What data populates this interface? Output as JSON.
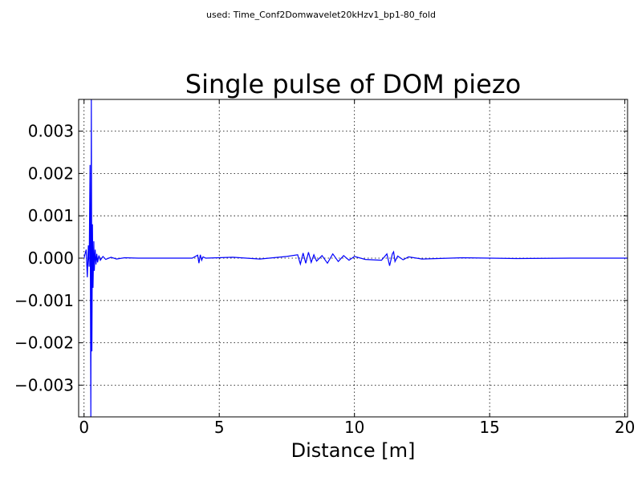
{
  "figure": {
    "suptitle": "used: Time_Conf2Domwavelet20kHzv1_bp1-80_fold"
  },
  "chart_data": {
    "type": "line",
    "title": "Single pulse of DOM piezo",
    "xlabel": "Distance [m]",
    "ylabel": "",
    "xlim": [
      -0.2,
      20.1
    ],
    "ylim": [
      -0.00375,
      0.00375
    ],
    "xticks": [
      0,
      5,
      10,
      15,
      20
    ],
    "xtick_labels": [
      "0",
      "5",
      "10",
      "15",
      "20"
    ],
    "yticks": [
      0.003,
      0.002,
      0.001,
      0.0,
      -0.001,
      -0.002,
      -0.003
    ],
    "ytick_labels": [
      "0.003",
      "0.002",
      "0.001",
      "0.000",
      "−0.001",
      "−0.002",
      "−0.003"
    ],
    "grid": true,
    "line_color": "#0000ff",
    "series": [
      {
        "x": [
          0.0,
          0.08,
          0.12,
          0.16,
          0.19,
          0.22,
          0.25,
          0.27,
          0.29,
          0.31,
          0.33,
          0.36,
          0.38,
          0.41,
          0.44,
          0.47,
          0.5,
          0.55,
          0.6,
          0.7,
          0.8,
          1.0,
          1.2,
          1.5,
          2.0,
          3.0,
          4.0,
          4.2,
          4.25,
          4.3,
          4.35,
          4.4,
          4.5,
          5.5,
          6.5,
          7.5,
          7.9,
          8.0,
          8.1,
          8.2,
          8.3,
          8.4,
          8.5,
          8.6,
          8.8,
          9.0,
          9.2,
          9.4,
          9.6,
          9.8,
          10.0,
          10.4,
          11.0,
          11.2,
          11.3,
          11.4,
          11.45,
          11.5,
          11.6,
          11.8,
          12.0,
          12.5,
          14.0,
          16.0,
          18.0,
          20.1
        ],
        "y": [
          0.0,
          0.0002,
          -0.00045,
          0.0003,
          -0.0002,
          0.0022,
          -0.0038,
          0.0038,
          -0.0022,
          0.0008,
          -0.0007,
          0.0004,
          -0.0003,
          0.0002,
          -0.00015,
          0.0001,
          -0.0001,
          6e-05,
          -5e-05,
          4e-05,
          -3e-05,
          2e-05,
          -2e-05,
          1e-05,
          0.0,
          0.0,
          0.0,
          7e-05,
          -0.00012,
          8e-05,
          -5e-05,
          3e-05,
          0.0,
          2e-05,
          -2e-05,
          4e-05,
          8e-05,
          -0.00014,
          0.00012,
          -0.00012,
          0.00014,
          -0.0001,
          8e-05,
          -7e-05,
          6e-05,
          -0.00012,
          0.0001,
          -8e-05,
          6e-05,
          -5e-05,
          4e-05,
          -3e-05,
          -5e-05,
          0.0001,
          -0.00018,
          0.0001,
          0.00015,
          -8e-05,
          5e-05,
          -4e-05,
          3e-05,
          -2e-05,
          1e-05,
          -1e-05,
          0.0,
          0.0
        ]
      }
    ]
  }
}
